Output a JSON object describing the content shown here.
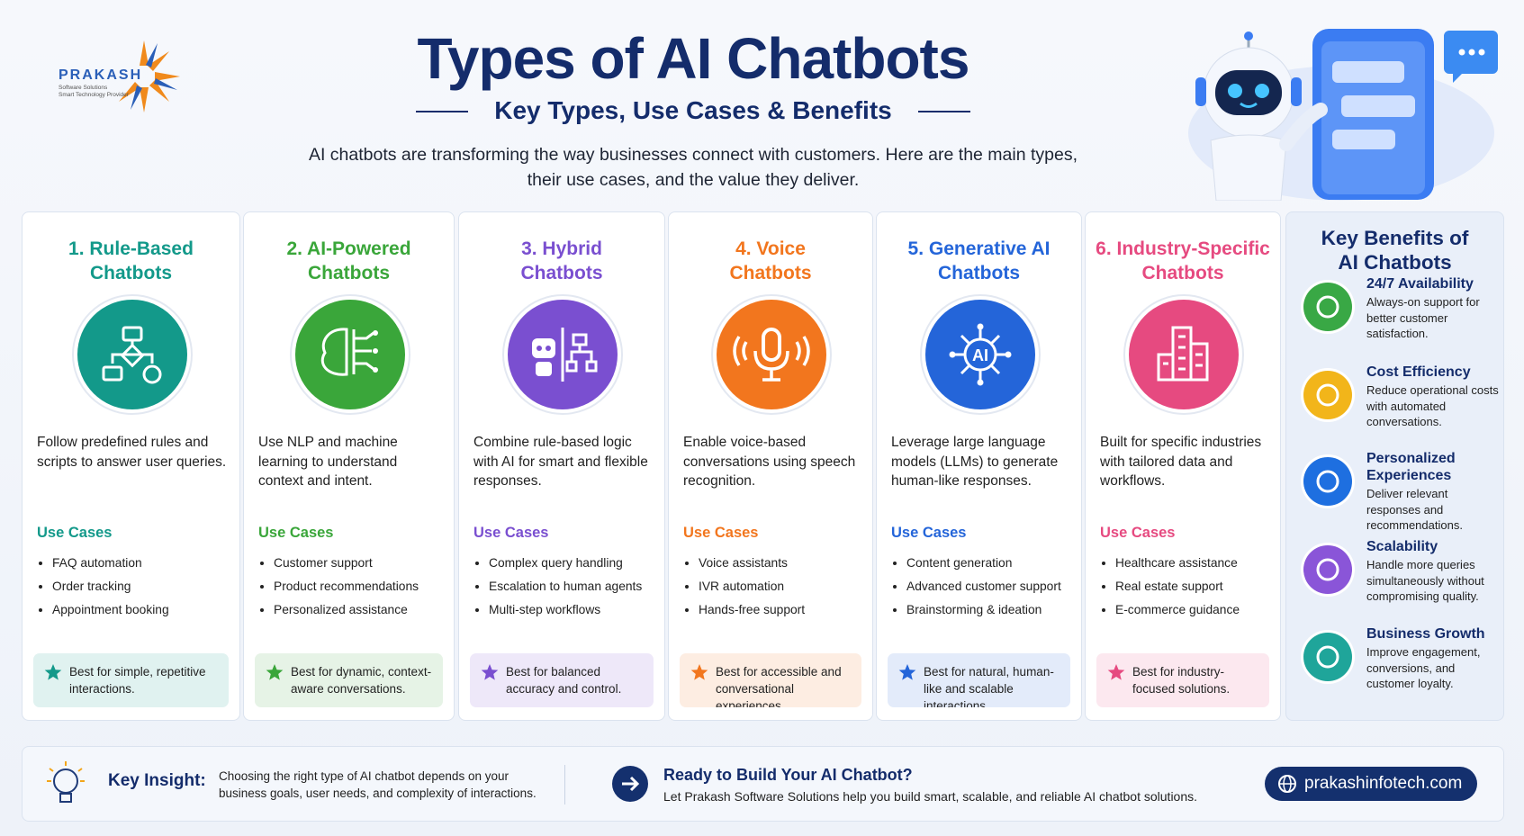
{
  "header": {
    "brand": "PRAKASH",
    "brand_tagline": [
      "Software Solutions",
      "Smart Technology Provider"
    ],
    "title": "Types of AI Chatbots",
    "subtitle": "Key Types, Use Cases & Benefits",
    "intro": [
      "AI chatbots are transforming the way businesses connect with customers. Here are the main types,",
      "their use cases, and the value they deliver."
    ]
  },
  "types": [
    {
      "title_lines": [
        "1. Rule-Based",
        "Chatbots"
      ],
      "color": "#13998a",
      "description": "Follow predefined rules and scripts to answer user queries.",
      "use_cases_label": "Use Cases",
      "use_cases": [
        "FAQ automation",
        "Order tracking",
        "Appointment booking"
      ],
      "best_for": "Best for simple, repetitive interactions."
    },
    {
      "title_lines": [
        "2. AI-Powered",
        "Chatbots"
      ],
      "color": "#3aa63a",
      "description": "Use NLP and machine learning to understand context and intent.",
      "use_cases_label": "Use Cases",
      "use_cases": [
        "Customer support",
        "Product recommendations",
        "Personalized assistance"
      ],
      "best_for": "Best for dynamic, context-aware conversations."
    },
    {
      "title_lines": [
        "3. Hybrid",
        "Chatbots"
      ],
      "color": "#7a4fd0",
      "description": "Combine rule-based logic with AI for smart and flexible responses.",
      "use_cases_label": "Use Cases",
      "use_cases": [
        "Complex query handling",
        "Escalation to human agents",
        "Multi-step workflows"
      ],
      "best_for": "Best for balanced accuracy and control."
    },
    {
      "title_lines": [
        "4. Voice",
        "Chatbots"
      ],
      "color": "#f2761e",
      "description": "Enable voice-based conversations using speech recognition.",
      "use_cases_label": "Use Cases",
      "use_cases": [
        "Voice assistants",
        "IVR automation",
        "Hands-free support"
      ],
      "best_for": "Best for accessible and conversational experiences."
    },
    {
      "title_lines": [
        "5. Generative AI",
        "Chatbots"
      ],
      "color": "#2465d9",
      "description": "Leverage large language models (LLMs) to generate human-like responses.",
      "use_cases_label": "Use Cases",
      "use_cases": [
        "Content generation",
        "Advanced customer support",
        "Brainstorming & ideation"
      ],
      "best_for": "Best for natural, human-like and scalable interactions."
    },
    {
      "title_lines": [
        "6. Industry-Specific",
        "Chatbots"
      ],
      "color": "#e64a80",
      "description": "Built for specific industries with tailored data and workflows.",
      "use_cases_label": "Use Cases",
      "use_cases": [
        "Healthcare assistance",
        "Real estate support",
        "E-commerce guidance"
      ],
      "best_for": "Best for industry-focused solutions."
    }
  ],
  "benefits": {
    "title_lines": [
      "Key Benefits of",
      "AI Chatbots"
    ],
    "items": [
      {
        "title": "24/7 Availability",
        "text": "Always-on support for better customer satisfaction.",
        "color": "#39a845"
      },
      {
        "title": "Cost Efficiency",
        "text": "Reduce operational costs with automated conversations.",
        "color": "#f2b51a"
      },
      {
        "title": "Personalized Experiences",
        "text": "Deliver relevant responses and recommendations.",
        "color": "#1e6fe0"
      },
      {
        "title": "Scalability",
        "text": "Handle more queries simultaneously without compromising quality.",
        "color": "#8a55d8"
      },
      {
        "title": "Business Growth",
        "text": "Improve engagement, conversions, and customer loyalty.",
        "color": "#1fa59a"
      }
    ]
  },
  "footer": {
    "insight_label": "Key Insight:",
    "insight_text": "Choosing the right type of AI chatbot depends on your business goals, user needs, and complexity of interactions.",
    "cta_title": "Ready to Build Your AI Chatbot?",
    "cta_text": "Let Prakash Software Solutions help you build smart, scalable, and reliable AI chatbot solutions.",
    "website": "prakashinfotech.com"
  }
}
